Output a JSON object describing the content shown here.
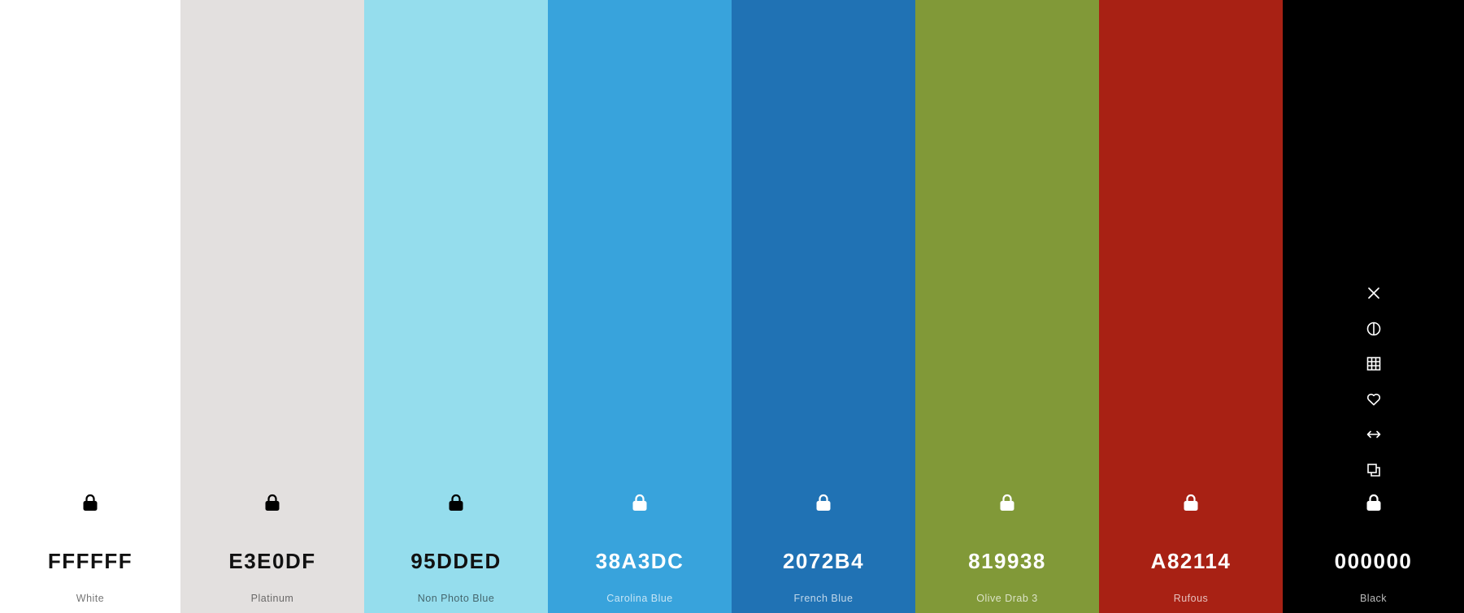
{
  "palette": {
    "colors": [
      {
        "hex": "FFFFFF",
        "name": "White",
        "bg": "#FFFFFF",
        "text": "dark",
        "locked": true
      },
      {
        "hex": "E3E0DF",
        "name": "Platinum",
        "bg": "#E3E0DF",
        "text": "dark",
        "locked": true
      },
      {
        "hex": "95DDED",
        "name": "Non Photo Blue",
        "bg": "#95DDED",
        "text": "dark",
        "locked": true
      },
      {
        "hex": "38A3DC",
        "name": "Carolina Blue",
        "bg": "#38A3DC",
        "text": "light",
        "locked": true
      },
      {
        "hex": "2072B4",
        "name": "French Blue",
        "bg": "#2072B4",
        "text": "light",
        "locked": true
      },
      {
        "hex": "819938",
        "name": "Olive Drab 3",
        "bg": "#819938",
        "text": "light",
        "locked": true
      },
      {
        "hex": "A82114",
        "name": "Rufous",
        "bg": "#A82114",
        "text": "light",
        "locked": true
      },
      {
        "hex": "000000",
        "name": "Black",
        "bg": "#000000",
        "text": "light",
        "locked": true
      }
    ]
  },
  "hover_tools": {
    "column": "Black",
    "icons": [
      "close-icon",
      "contrast-icon",
      "grid-icon",
      "heart-icon",
      "arrows-horizontal-icon",
      "copy-icon"
    ]
  }
}
